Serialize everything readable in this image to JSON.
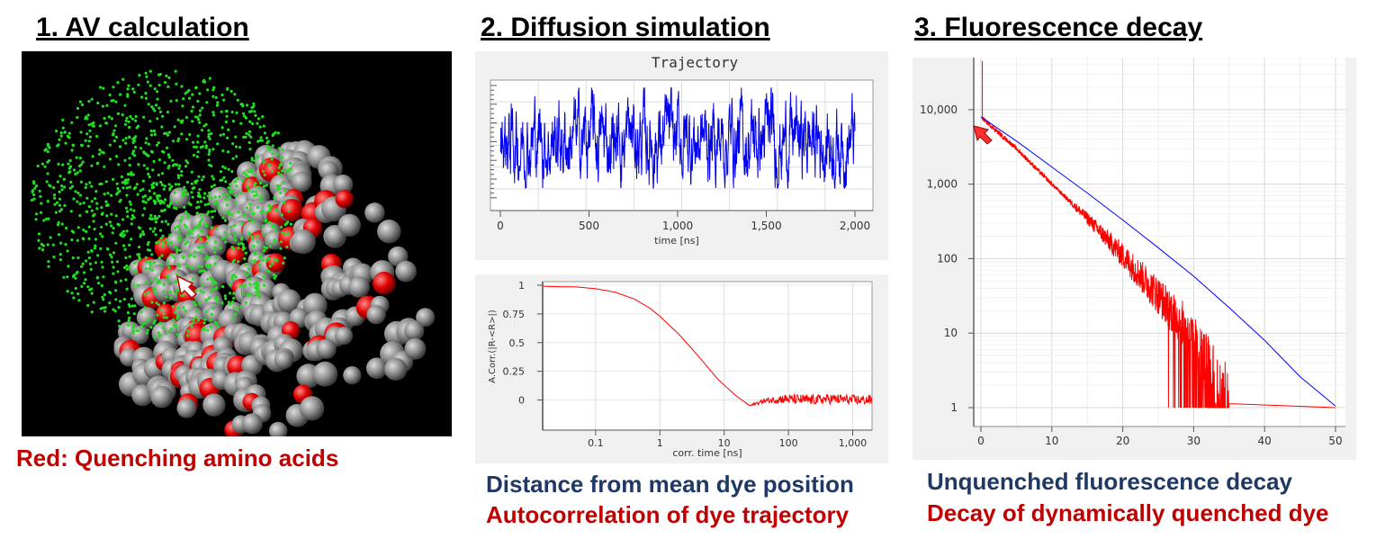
{
  "headings": {
    "av": "1. AV calculation",
    "diffusion": "2. Diffusion simulation",
    "fluorescence": "3. Fluorescence decay"
  },
  "captions": {
    "av": "Red: Quenching amino acids",
    "distance": "Distance from mean dye position",
    "autocorrelation": "Autocorrelation of dye trajectory",
    "unquenched": "Unquenched fluorescence decay",
    "quenched": "Decay of dynamically quenched dye"
  },
  "colors": {
    "protein_atom": "#8c8c8c",
    "quencher_atom": "#e00000",
    "dye_position": "#22dd22",
    "trajectory_line": "#0000ee",
    "autocorr_line": "#ff0000",
    "unquenched_line": "#0000ff",
    "quenched_line": "#ff0000"
  },
  "chart_data": [
    {
      "type": "line",
      "title": "Trajectory",
      "xlabel": "time [ns]",
      "ylabel": "",
      "xlim": [
        0,
        2000
      ],
      "xticks": [
        "0",
        "500",
        "1,000",
        "1,500",
        "2,000"
      ],
      "grid": true,
      "series": [
        {
          "description_free": true,
          "values_range": [
            0.05,
            0.95
          ],
          "color": "#0000ee"
        }
      ]
    },
    {
      "type": "line",
      "title": "",
      "xlabel": "corr. time [ns]",
      "ylabel": "A.Corr.(|R-<R>|)",
      "x_scale": "log",
      "xlim": [
        0.015,
        2000
      ],
      "ylim": [
        -0.2,
        1
      ],
      "xticks": [
        "0.1",
        "1",
        "10",
        "100",
        "1,000"
      ],
      "yticks": [
        "1",
        "0.75",
        "0.5",
        "0.25",
        "0"
      ],
      "grid": true,
      "series": [
        {
          "x": [
            0.015,
            0.05,
            0.1,
            0.2,
            0.4,
            0.7,
            1,
            2,
            4,
            8,
            15,
            25,
            40,
            80,
            200,
            500,
            1000,
            2000
          ],
          "y": [
            0.99,
            0.985,
            0.97,
            0.94,
            0.88,
            0.8,
            0.73,
            0.57,
            0.38,
            0.18,
            0.04,
            -0.05,
            -0.01,
            0.01,
            0.0,
            0.01,
            0.0,
            0.0
          ],
          "color": "#ff0000"
        }
      ]
    },
    {
      "type": "line",
      "title": "",
      "xlabel": "",
      "ylabel": "",
      "y_scale": "log",
      "xlim": [
        -0.5,
        50
      ],
      "ylim": [
        1,
        50000
      ],
      "xticks": [
        "0",
        "10",
        "20",
        "30",
        "40",
        "50"
      ],
      "yticks": [
        "10,000",
        "1,000",
        "100",
        "10",
        "1"
      ],
      "grid": true,
      "series": [
        {
          "x": [
            0,
            5,
            10,
            15,
            20,
            25,
            30,
            35,
            40,
            45,
            50
          ],
          "y": [
            8000,
            3800,
            1700,
            760,
            330,
            140,
            58,
            22,
            8,
            2.6,
            1.05
          ],
          "color": "#0000ff"
        },
        {
          "x": [
            0,
            5,
            10,
            15,
            20,
            25,
            28,
            30,
            32,
            35,
            40,
            50
          ],
          "y": [
            8000,
            3000,
            1000,
            350,
            110,
            32,
            15,
            8,
            4,
            1.5,
            1,
            1
          ],
          "color": "#ff0000"
        }
      ]
    }
  ]
}
